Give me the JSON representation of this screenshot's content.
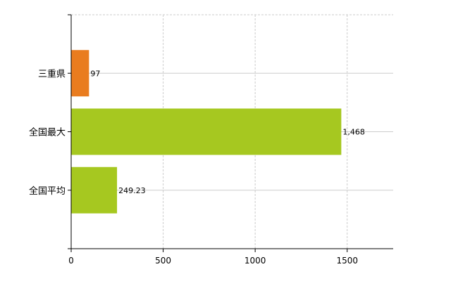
{
  "chart_data": {
    "type": "bar",
    "orientation": "horizontal",
    "categories": [
      "三重県",
      "全国最大",
      "全国平均"
    ],
    "values": [
      97,
      1468,
      249.23
    ],
    "data_labels": [
      "97",
      "1,468",
      "249.23"
    ],
    "colors": [
      "#e97c1f",
      "#a6c820",
      "#a6c820"
    ],
    "xlim": [
      0,
      1750
    ],
    "xticks": [
      0,
      500,
      1000,
      1500
    ],
    "xtick_labels": [
      "0",
      "500",
      "1000",
      "1500"
    ],
    "grid": true,
    "title": "",
    "xlabel": "",
    "ylabel": ""
  }
}
